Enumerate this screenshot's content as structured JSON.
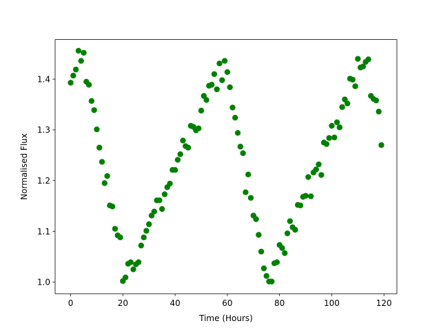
{
  "chart_data": {
    "type": "scatter",
    "title": "",
    "xlabel": "Time (Hours)",
    "ylabel": "Normalised Flux",
    "xlim": [
      -5.95,
      124.95
    ],
    "ylim": [
      0.977,
      1.478
    ],
    "xticks": [
      0,
      20,
      40,
      60,
      80,
      100,
      120
    ],
    "yticks": [
      1.0,
      1.1,
      1.2,
      1.3,
      1.4
    ],
    "ytick_labels": [
      "1.0",
      "1.1",
      "1.2",
      "1.3",
      "1.4"
    ],
    "grid": false,
    "marker_color": "#008000",
    "series": [
      {
        "x": [
          0,
          1,
          2,
          3,
          4,
          5,
          6,
          7,
          8,
          9,
          10,
          11,
          12,
          13,
          14,
          15,
          16,
          17,
          18,
          19,
          20,
          21,
          22,
          23,
          24,
          25,
          26,
          27,
          28,
          29,
          30,
          31,
          32,
          33,
          34,
          35,
          36,
          37,
          38,
          39,
          40,
          41,
          42,
          43,
          44,
          45,
          46,
          47,
          48,
          49,
          50,
          51,
          52,
          53,
          54,
          55,
          56,
          57,
          58,
          59,
          60,
          61,
          62,
          63,
          64,
          65,
          66,
          67,
          68,
          69,
          70,
          71,
          72,
          73,
          74,
          75,
          76,
          77,
          78,
          79,
          80,
          81,
          82,
          83,
          84,
          85,
          86,
          87,
          88,
          89,
          90,
          91,
          92,
          93,
          94,
          95,
          96,
          97,
          98,
          99,
          100,
          101,
          102,
          103,
          104,
          105,
          106,
          107,
          108,
          109,
          110,
          111,
          112,
          113,
          114,
          115,
          116,
          117,
          118,
          119
        ],
        "y": [
          1.393,
          1.407,
          1.419,
          1.456,
          1.436,
          1.452,
          1.395,
          1.389,
          1.357,
          1.339,
          1.301,
          1.265,
          1.237,
          1.195,
          1.209,
          1.151,
          1.149,
          1.105,
          1.092,
          1.088,
          1.002,
          1.009,
          1.036,
          1.039,
          1.025,
          1.035,
          1.039,
          1.072,
          1.088,
          1.101,
          1.114,
          1.131,
          1.139,
          1.161,
          1.161,
          1.144,
          1.173,
          1.187,
          1.194,
          1.221,
          1.221,
          1.241,
          1.252,
          1.279,
          1.268,
          1.265,
          1.308,
          1.306,
          1.299,
          1.303,
          1.338,
          1.367,
          1.359,
          1.387,
          1.389,
          1.41,
          1.38,
          1.431,
          1.398,
          1.436,
          1.414,
          1.384,
          1.344,
          1.324,
          1.294,
          1.267,
          1.254,
          1.177,
          1.212,
          1.166,
          1.131,
          1.124,
          1.093,
          1.06,
          1.027,
          1.012,
          1.001,
          1.001,
          1.037,
          1.039,
          1.073,
          1.067,
          1.057,
          1.096,
          1.12,
          1.108,
          1.103,
          1.152,
          1.151,
          1.168,
          1.17,
          1.207,
          1.169,
          1.216,
          1.222,
          1.232,
          1.211,
          1.275,
          1.272,
          1.284,
          1.308,
          1.285,
          1.315,
          1.305,
          1.345,
          1.36,
          1.352,
          1.401,
          1.399,
          1.386,
          1.44,
          1.423,
          1.425,
          1.434,
          1.439,
          1.367,
          1.361,
          1.358,
          1.336,
          1.27
        ]
      }
    ]
  }
}
